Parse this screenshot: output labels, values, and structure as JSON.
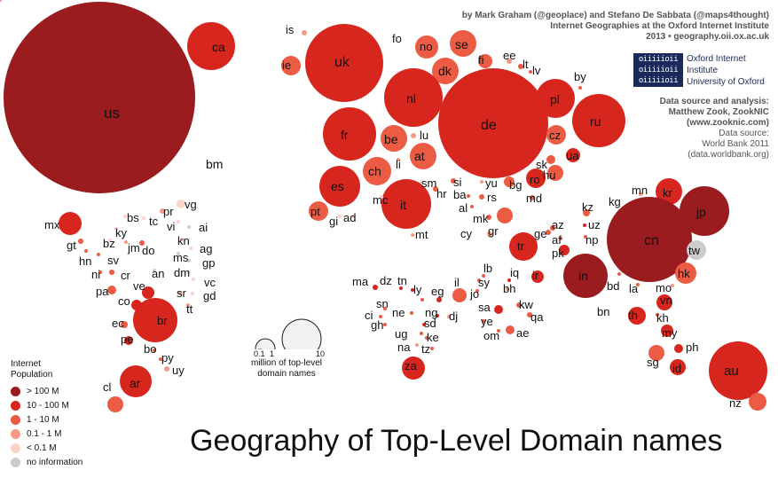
{
  "title": "Geography of Top-Level Domain names",
  "credits": {
    "line1": "by Mark Graham (@geoplace) and Stefano De Sabbata (@maps4thought)",
    "line2": "Internet Geographies at the Oxford Internet Institute",
    "line3": "2013 • geography.oii.ox.ac.uk"
  },
  "institution": {
    "logo_text": "oiiiiioii",
    "name": "Oxford Internet Institute",
    "university": "University of Oxford"
  },
  "source": {
    "analysis_heading": "Data source and analysis:",
    "analysis_by": "Matthew Zook, ZookNIC",
    "analysis_url": "(www.zooknic.com)",
    "data_heading": "Data source:",
    "data_name": "World Bank 2011",
    "data_url": "(data.worldbank.org)"
  },
  "legend": {
    "heading_line1": "Internet",
    "heading_line2": "Population",
    "items": [
      {
        "label": "> 100 M",
        "color": "#9b1c1f"
      },
      {
        "label": "10 - 100 M",
        "color": "#d7261e"
      },
      {
        "label": "1 - 10 M",
        "color": "#ec5b43"
      },
      {
        "label": "0.1 - 1 M",
        "color": "#f49a86"
      },
      {
        "label": "< 0.1 M",
        "color": "#fbd3c8"
      },
      {
        "label": "no information",
        "color": "#cccccc"
      }
    ]
  },
  "size_key": {
    "ticks": [
      "0.1",
      "1",
      "10"
    ],
    "caption_line1": "million of top-level",
    "caption_line2": "domain names"
  },
  "colors": {
    "c0": "#9b1c1f",
    "c1": "#d7261e",
    "c2": "#ec5b43",
    "c3": "#f49a86",
    "c4": "#fbd3c8",
    "c5": "#cccccc"
  },
  "bubbles": [
    {
      "code": "us",
      "cls": 0,
      "r": 108
    },
    {
      "code": "ca",
      "cls": 1,
      "r": 27
    },
    {
      "code": "bm",
      "cls": 4,
      "r": 0
    },
    {
      "code": "mx",
      "cls": 1,
      "r": 13
    },
    {
      "code": "gt",
      "cls": 2,
      "r": 3
    },
    {
      "code": "hn",
      "cls": 2,
      "r": 2
    },
    {
      "code": "bz",
      "cls": 4,
      "r": 2
    },
    {
      "code": "sv",
      "cls": 2,
      "r": 2
    },
    {
      "code": "ni",
      "cls": 2,
      "r": 2
    },
    {
      "code": "cr",
      "cls": 2,
      "r": 3
    },
    {
      "code": "pa",
      "cls": 2,
      "r": 5
    },
    {
      "code": "bs",
      "cls": 4,
      "r": 2
    },
    {
      "code": "ky",
      "cls": 4,
      "r": 2
    },
    {
      "code": "tc",
      "cls": 4,
      "r": 2
    },
    {
      "code": "pr",
      "cls": 3,
      "r": 3
    },
    {
      "code": "vg",
      "cls": 4,
      "r": 5
    },
    {
      "code": "vi",
      "cls": 4,
      "r": 2
    },
    {
      "code": "ai",
      "cls": 5,
      "r": 2
    },
    {
      "code": "jm",
      "cls": 3,
      "r": 2
    },
    {
      "code": "do",
      "cls": 2,
      "r": 3
    },
    {
      "code": "kn",
      "cls": 4,
      "r": 2
    },
    {
      "code": "ag",
      "cls": 4,
      "r": 2
    },
    {
      "code": "ms",
      "cls": 5,
      "r": 2
    },
    {
      "code": "gp",
      "cls": 5,
      "r": 2
    },
    {
      "code": "an",
      "cls": 5,
      "r": 2
    },
    {
      "code": "dm",
      "cls": 4,
      "r": 2
    },
    {
      "code": "vc",
      "cls": 4,
      "r": 2
    },
    {
      "code": "sr",
      "cls": 3,
      "r": 2
    },
    {
      "code": "gd",
      "cls": 4,
      "r": 2
    },
    {
      "code": "tt",
      "cls": 3,
      "r": 2
    },
    {
      "code": "ve",
      "cls": 1,
      "r": 7
    },
    {
      "code": "co",
      "cls": 1,
      "r": 6
    },
    {
      "code": "br",
      "cls": 1,
      "r": 25
    },
    {
      "code": "ec",
      "cls": 2,
      "r": 4
    },
    {
      "code": "pe",
      "cls": 1,
      "r": 5
    },
    {
      "code": "bo",
      "cls": 2,
      "r": 2
    },
    {
      "code": "py",
      "cls": 2,
      "r": 2
    },
    {
      "code": "uy",
      "cls": 3,
      "r": 3
    },
    {
      "code": "ar",
      "cls": 1,
      "r": 18
    },
    {
      "code": "cl",
      "cls": 2,
      "r": 9
    },
    {
      "code": "is",
      "cls": 3,
      "r": 3
    },
    {
      "code": "fo",
      "cls": 4,
      "r": 2
    },
    {
      "code": "ie",
      "cls": 2,
      "r": 11
    },
    {
      "code": "uk",
      "cls": 1,
      "r": 44
    },
    {
      "code": "no",
      "cls": 2,
      "r": 13
    },
    {
      "code": "se",
      "cls": 2,
      "r": 15
    },
    {
      "code": "fi",
      "cls": 2,
      "r": 8
    },
    {
      "code": "ee",
      "cls": 3,
      "r": 3
    },
    {
      "code": "lt",
      "cls": 2,
      "r": 3
    },
    {
      "code": "lv",
      "cls": 2,
      "r": 2
    },
    {
      "code": "dk",
      "cls": 2,
      "r": 15
    },
    {
      "code": "nl",
      "cls": 1,
      "r": 33
    },
    {
      "code": "de",
      "cls": 1,
      "r": 62
    },
    {
      "code": "pl",
      "cls": 1,
      "r": 22
    },
    {
      "code": "by",
      "cls": 2,
      "r": 2
    },
    {
      "code": "ru",
      "cls": 1,
      "r": 30
    },
    {
      "code": "fr",
      "cls": 1,
      "r": 30
    },
    {
      "code": "be",
      "cls": 2,
      "r": 15
    },
    {
      "code": "lu",
      "cls": 3,
      "r": 3
    },
    {
      "code": "cz",
      "cls": 2,
      "r": 11
    },
    {
      "code": "ua",
      "cls": 1,
      "r": 8
    },
    {
      "code": "at",
      "cls": 2,
      "r": 15
    },
    {
      "code": "ch",
      "cls": 2,
      "r": 16
    },
    {
      "code": "li",
      "cls": 3,
      "r": 2
    },
    {
      "code": "sk",
      "cls": 2,
      "r": 5
    },
    {
      "code": "hu",
      "cls": 2,
      "r": 9
    },
    {
      "code": "hr",
      "cls": 2,
      "r": 3
    },
    {
      "code": "si",
      "cls": 2,
      "r": 3
    },
    {
      "code": "ro",
      "cls": 1,
      "r": 11
    },
    {
      "code": "es",
      "cls": 1,
      "r": 23
    },
    {
      "code": "it",
      "cls": 1,
      "r": 28
    },
    {
      "code": "sm",
      "cls": 4,
      "r": 2
    },
    {
      "code": "mc",
      "cls": 4,
      "r": 2
    },
    {
      "code": "pt",
      "cls": 2,
      "r": 11
    },
    {
      "code": "gi",
      "cls": 4,
      "r": 2
    },
    {
      "code": "ad",
      "cls": 4,
      "r": 2
    },
    {
      "code": "mt",
      "cls": 3,
      "r": 2
    },
    {
      "code": "yu",
      "cls": 3,
      "r": 2
    },
    {
      "code": "bg",
      "cls": 2,
      "r": 6
    },
    {
      "code": "ba",
      "cls": 2,
      "r": 2
    },
    {
      "code": "rs",
      "cls": 2,
      "r": 3
    },
    {
      "code": "md",
      "cls": 2,
      "r": 3
    },
    {
      "code": "al",
      "cls": 2,
      "r": 2
    },
    {
      "code": "mk",
      "cls": 2,
      "r": 3
    },
    {
      "code": "gr",
      "cls": 2,
      "r": 9
    },
    {
      "code": "cy",
      "cls": 3,
      "r": 3
    },
    {
      "code": "tr",
      "cls": 1,
      "r": 16
    },
    {
      "code": "ge",
      "cls": 2,
      "r": 3
    },
    {
      "code": "az",
      "cls": 2,
      "r": 3
    },
    {
      "code": "af",
      "cls": 2,
      "r": 2
    },
    {
      "code": "kz",
      "cls": 2,
      "r": 4
    },
    {
      "code": "uz",
      "cls": 1,
      "r": 2
    },
    {
      "code": "np",
      "cls": 2,
      "r": 2
    },
    {
      "code": "pk",
      "cls": 1,
      "r": 6
    },
    {
      "code": "kg",
      "cls": 2,
      "r": 2
    },
    {
      "code": "mn",
      "cls": 3,
      "r": 2
    },
    {
      "code": "kr",
      "cls": 1,
      "r": 15
    },
    {
      "code": "jp",
      "cls": 0,
      "r": 28
    },
    {
      "code": "cn",
      "cls": 0,
      "r": 48
    },
    {
      "code": "tw",
      "cls": 5,
      "r": 11
    },
    {
      "code": "hk",
      "cls": 2,
      "r": 12
    },
    {
      "code": "in",
      "cls": 0,
      "r": 25
    },
    {
      "code": "bd",
      "cls": 2,
      "r": 2
    },
    {
      "code": "bn",
      "cls": 3,
      "r": 2
    },
    {
      "code": "mo",
      "cls": 3,
      "r": 2
    },
    {
      "code": "la",
      "cls": 2,
      "r": 2
    },
    {
      "code": "vn",
      "cls": 1,
      "r": 9
    },
    {
      "code": "th",
      "cls": 1,
      "r": 10
    },
    {
      "code": "kh",
      "cls": 2,
      "r": 2
    },
    {
      "code": "my",
      "cls": 1,
      "r": 7
    },
    {
      "code": "ph",
      "cls": 1,
      "r": 5
    },
    {
      "code": "sg",
      "cls": 2,
      "r": 9
    },
    {
      "code": "id",
      "cls": 1,
      "r": 9
    },
    {
      "code": "au",
      "cls": 1,
      "r": 33
    },
    {
      "code": "nz",
      "cls": 2,
      "r": 10
    },
    {
      "code": "ma",
      "cls": 1,
      "r": 3
    },
    {
      "code": "dz",
      "cls": 1,
      "r": 2
    },
    {
      "code": "tn",
      "cls": 1,
      "r": 2
    },
    {
      "code": "ly",
      "cls": 2,
      "r": 2
    },
    {
      "code": "eg",
      "cls": 1,
      "r": 3
    },
    {
      "code": "sn",
      "cls": 2,
      "r": 2
    },
    {
      "code": "ci",
      "cls": 2,
      "r": 2
    },
    {
      "code": "gh",
      "cls": 2,
      "r": 2
    },
    {
      "code": "ne",
      "cls": 2,
      "r": 2
    },
    {
      "code": "ng",
      "cls": 1,
      "r": 2
    },
    {
      "code": "ug",
      "cls": 2,
      "r": 2
    },
    {
      "code": "sd",
      "cls": 1,
      "r": 2
    },
    {
      "code": "ke",
      "cls": 2,
      "r": 2
    },
    {
      "code": "na",
      "cls": 3,
      "r": 2
    },
    {
      "code": "tz",
      "cls": 2,
      "r": 2
    },
    {
      "code": "za",
      "cls": 1,
      "r": 13
    },
    {
      "code": "il",
      "cls": 2,
      "r": 8
    },
    {
      "code": "dj",
      "cls": 3,
      "r": 2
    },
    {
      "code": "lb",
      "cls": 2,
      "r": 2
    },
    {
      "code": "sy",
      "cls": 2,
      "r": 2
    },
    {
      "code": "jo",
      "cls": 2,
      "r": 2
    },
    {
      "code": "iq",
      "cls": 1,
      "r": 2
    },
    {
      "code": "ir",
      "cls": 1,
      "r": 7
    },
    {
      "code": "bh",
      "cls": 3,
      "r": 2
    },
    {
      "code": "sa",
      "cls": 1,
      "r": 5
    },
    {
      "code": "kw",
      "cls": 2,
      "r": 3
    },
    {
      "code": "qa",
      "cls": 2,
      "r": 3
    },
    {
      "code": "ye",
      "cls": 2,
      "r": 2
    },
    {
      "code": "ae",
      "cls": 2,
      "r": 5
    },
    {
      "code": "om",
      "cls": 2,
      "r": 2
    }
  ]
}
